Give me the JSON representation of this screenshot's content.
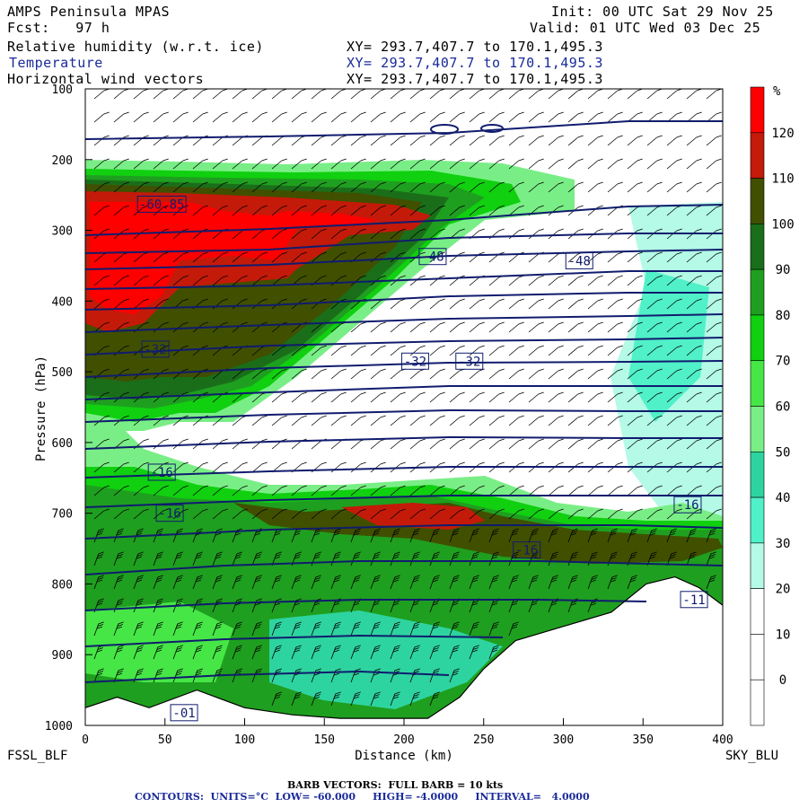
{
  "header": {
    "model": "AMPS Peninsula MPAS",
    "forecast": "Fcst:   97 h",
    "init": "Init: 00 UTC Sat 29 Nov 25",
    "valid": "Valid: 01 UTC Wed 03 Dec 25",
    "fields": [
      {
        "name": "Relative humidity (w.r.t. ice)",
        "xy": "XY= 293.7,407.7 to 170.1,495.3",
        "color": "#000000"
      },
      {
        "name": "Temperature",
        "xy": "XY= 293.7,407.7 to 170.1,495.3",
        "color": "#1a2a9a"
      },
      {
        "name": "Horizontal wind vectors",
        "xy": "XY= 293.7,407.7 to 170.1,495.3",
        "color": "#000000"
      }
    ]
  },
  "footer": {
    "left_station": "FSSL_BLF",
    "right_station": "SKY_BLU",
    "barb_note": "BARB VECTORS:  FULL BARB = 10 kts",
    "contour_note": "CONTOURS:  UNITS=°C  LOW= -60.000     HIGH= -4.0000     INTERVAL=   4.0000"
  },
  "colorbar": {
    "unit": "%",
    "levels": [
      120,
      110,
      100,
      90,
      80,
      70,
      60,
      50,
      40,
      30,
      20,
      10,
      0
    ],
    "colors": [
      "#ff0000",
      "#c41a0a",
      "#405000",
      "#1a6e1a",
      "#1f9f1f",
      "#10d010",
      "#46e646",
      "#7aee86",
      "#2ed4a0",
      "#50f0c8",
      "#b4fae6",
      "#ffffff",
      "#ffffff",
      "#ffffff"
    ]
  },
  "chart_data": {
    "type": "heatmap",
    "xlabel": "Distance (km)",
    "ylabel": "Pressure (hPa)",
    "xlim": [
      0,
      400
    ],
    "ylim": [
      1000,
      100
    ],
    "x_ticks": [
      0,
      50,
      100,
      150,
      200,
      250,
      300,
      350,
      400
    ],
    "y_ticks": [
      100,
      200,
      300,
      400,
      500,
      600,
      700,
      800,
      900,
      1000
    ],
    "contour_labels": [
      {
        "text": "-60.85",
        "x": 48,
        "p": 263
      },
      {
        "text": "-48",
        "x": 218,
        "p": 337
      },
      {
        "text": "-48",
        "x": 310,
        "p": 343
      },
      {
        "text": "-32",
        "x": 44,
        "p": 468
      },
      {
        "text": "-32",
        "x": 207,
        "p": 485
      },
      {
        "text": "-32",
        "x": 241,
        "p": 485
      },
      {
        "text": "-16",
        "x": 48,
        "p": 642
      },
      {
        "text": "-16",
        "x": 53,
        "p": 700
      },
      {
        "text": "-16",
        "x": 277,
        "p": 752
      },
      {
        "text": "-16",
        "x": 378,
        "p": 688
      },
      {
        "text": "-11",
        "x": 382,
        "p": 822
      },
      {
        "text": "-01",
        "x": 62,
        "p": 982
      }
    ],
    "terrain": [
      [
        0,
        975
      ],
      [
        20,
        960
      ],
      [
        40,
        975
      ],
      [
        70,
        950
      ],
      [
        100,
        975
      ],
      [
        130,
        985
      ],
      [
        160,
        990
      ],
      [
        195,
        990
      ],
      [
        215,
        990
      ],
      [
        235,
        960
      ],
      [
        250,
        920
      ],
      [
        270,
        880
      ],
      [
        300,
        860
      ],
      [
        330,
        840
      ],
      [
        352,
        800
      ],
      [
        370,
        790
      ],
      [
        385,
        805
      ],
      [
        400,
        830
      ]
    ]
  }
}
